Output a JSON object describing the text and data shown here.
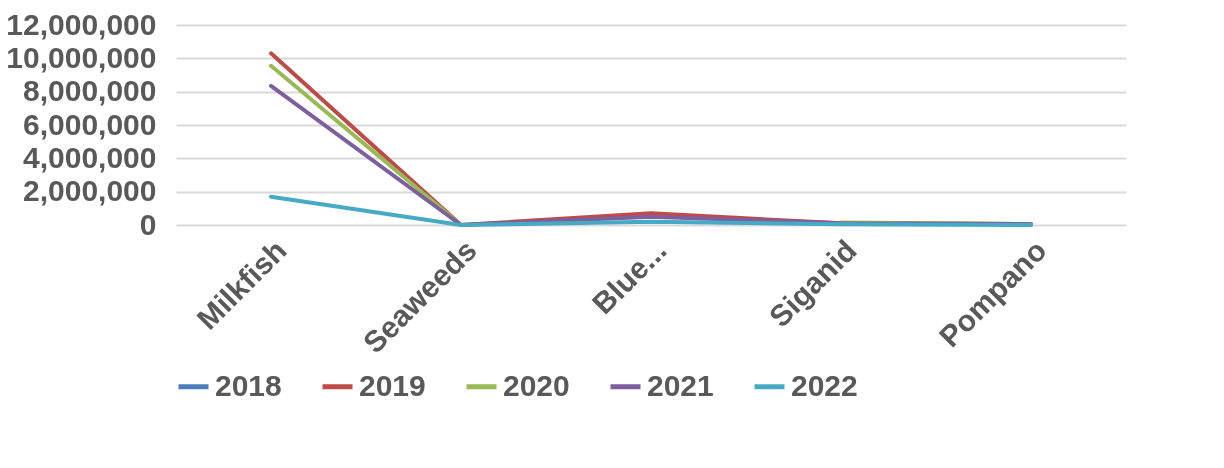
{
  "chart_data": {
    "type": "line",
    "categories": [
      "Milkfish",
      "Seaweeds",
      "Blue...",
      "Siganid",
      "Pompano"
    ],
    "series": [
      {
        "name": "2018",
        "color": "#4a7ebb",
        "values": [
          null,
          null,
          null,
          null,
          null
        ]
      },
      {
        "name": "2019",
        "color": "#be4b48",
        "values": [
          10300000,
          0,
          700000,
          100000,
          50000
        ]
      },
      {
        "name": "2020",
        "color": "#98b954",
        "values": [
          9550000,
          0,
          null,
          150000,
          50000
        ]
      },
      {
        "name": "2021",
        "color": "#7d5fa0",
        "values": [
          8350000,
          0,
          500000,
          100000,
          50000
        ]
      },
      {
        "name": "2022",
        "color": "#46aac5",
        "values": [
          1700000,
          0,
          200000,
          50000,
          0
        ]
      }
    ],
    "ylim": [
      0,
      12000000
    ],
    "yticks": [
      0,
      {
        "value": 2000000,
        "label": "2,000,000"
      },
      {
        "value": 4000000,
        "label": "4,000,000"
      },
      {
        "value": 6000000,
        "label": "6,000,000"
      },
      {
        "value": 8000000,
        "label": "8,000,000"
      },
      {
        "value": 10000000,
        "label": "10,000,000"
      },
      {
        "value": 12000000,
        "label": "12,000,000"
      }
    ],
    "grid": "y",
    "legend": "bottom",
    "line_style": "solid",
    "marker": "none"
  }
}
